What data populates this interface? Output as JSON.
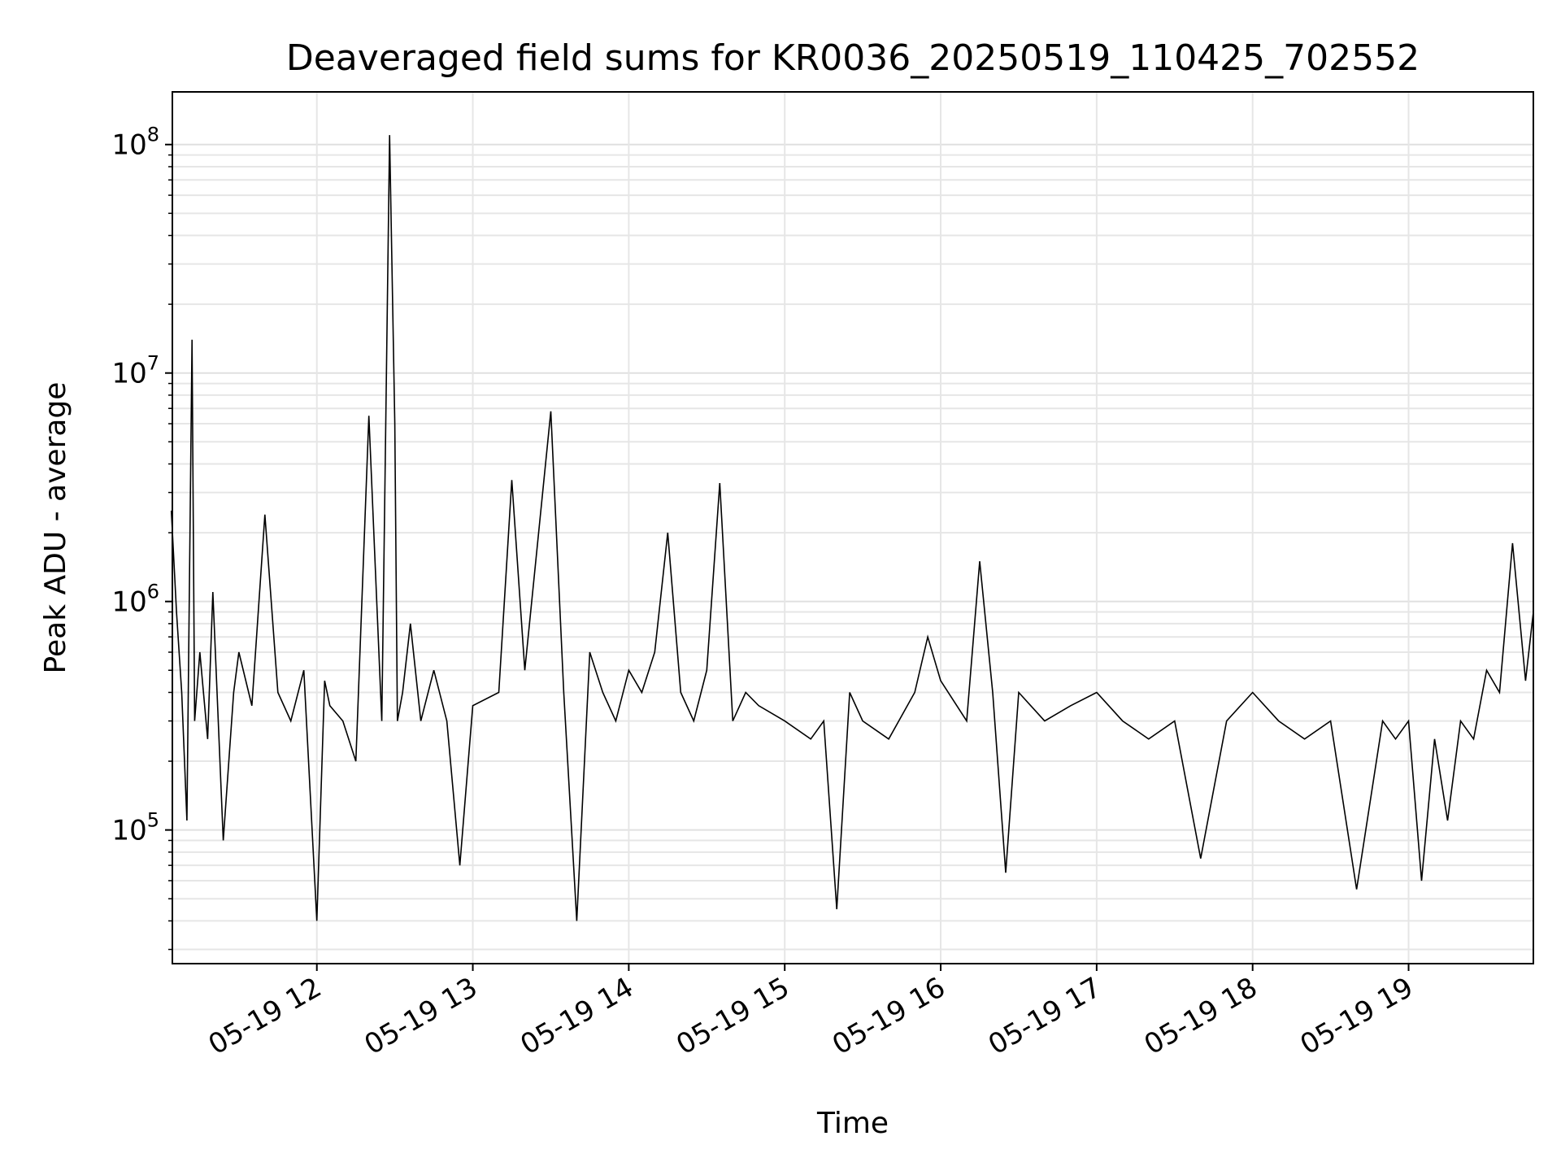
{
  "chart_data": {
    "type": "line",
    "title": "Deaveraged field sums for KR0036_20250519_110425_702552",
    "xlabel": "Time",
    "ylabel": "Peak ADU - average",
    "yscale": "log",
    "ylim": [
      26000,
      170000000
    ],
    "xlim": [
      "2025-05-19 11:04:25",
      "2025-05-19 19:48:00"
    ],
    "grid": true,
    "x_ticks": [
      {
        "x": "2025-05-19 12:00",
        "label": "05-19 12"
      },
      {
        "x": "2025-05-19 13:00",
        "label": "05-19 13"
      },
      {
        "x": "2025-05-19 14:00",
        "label": "05-19 14"
      },
      {
        "x": "2025-05-19 15:00",
        "label": "05-19 15"
      },
      {
        "x": "2025-05-19 16:00",
        "label": "05-19 16"
      },
      {
        "x": "2025-05-19 17:00",
        "label": "05-19 17"
      },
      {
        "x": "2025-05-19 18:00",
        "label": "05-19 18"
      },
      {
        "x": "2025-05-19 19:00",
        "label": "05-19 19"
      }
    ],
    "y_ticks": [
      {
        "value": 100000,
        "base": "10",
        "exp": "5"
      },
      {
        "value": 1000000,
        "base": "10",
        "exp": "6"
      },
      {
        "value": 10000000,
        "base": "10",
        "exp": "7"
      },
      {
        "value": 100000000,
        "base": "10",
        "exp": "8"
      }
    ],
    "series": [
      {
        "color": "#000000",
        "x": [
          "2025-05-19 11:04",
          "2025-05-19 11:06",
          "2025-05-19 11:08",
          "2025-05-19 11:10",
          "2025-05-19 11:12",
          "2025-05-19 11:13",
          "2025-05-19 11:15",
          "2025-05-19 11:18",
          "2025-05-19 11:20",
          "2025-05-19 11:24",
          "2025-05-19 11:28",
          "2025-05-19 11:30",
          "2025-05-19 11:35",
          "2025-05-19 11:40",
          "2025-05-19 11:45",
          "2025-05-19 11:50",
          "2025-05-19 11:55",
          "2025-05-19 12:00",
          "2025-05-19 12:03",
          "2025-05-19 12:05",
          "2025-05-19 12:10",
          "2025-05-19 12:15",
          "2025-05-19 12:20",
          "2025-05-19 12:25",
          "2025-05-19 12:28",
          "2025-05-19 12:30",
          "2025-05-19 12:31",
          "2025-05-19 12:33",
          "2025-05-19 12:36",
          "2025-05-19 12:40",
          "2025-05-19 12:45",
          "2025-05-19 12:50",
          "2025-05-19 12:55",
          "2025-05-19 13:00",
          "2025-05-19 13:10",
          "2025-05-19 13:15",
          "2025-05-19 13:20",
          "2025-05-19 13:30",
          "2025-05-19 13:35",
          "2025-05-19 13:40",
          "2025-05-19 13:45",
          "2025-05-19 13:50",
          "2025-05-19 13:55",
          "2025-05-19 14:00",
          "2025-05-19 14:05",
          "2025-05-19 14:10",
          "2025-05-19 14:15",
          "2025-05-19 14:20",
          "2025-05-19 14:25",
          "2025-05-19 14:30",
          "2025-05-19 14:35",
          "2025-05-19 14:40",
          "2025-05-19 14:45",
          "2025-05-19 14:50",
          "2025-05-19 15:00",
          "2025-05-19 15:10",
          "2025-05-19 15:15",
          "2025-05-19 15:20",
          "2025-05-19 15:25",
          "2025-05-19 15:30",
          "2025-05-19 15:40",
          "2025-05-19 15:50",
          "2025-05-19 15:55",
          "2025-05-19 16:00",
          "2025-05-19 16:10",
          "2025-05-19 16:15",
          "2025-05-19 16:20",
          "2025-05-19 16:25",
          "2025-05-19 16:30",
          "2025-05-19 16:40",
          "2025-05-19 16:50",
          "2025-05-19 17:00",
          "2025-05-19 17:10",
          "2025-05-19 17:20",
          "2025-05-19 17:30",
          "2025-05-19 17:40",
          "2025-05-19 17:50",
          "2025-05-19 18:00",
          "2025-05-19 18:10",
          "2025-05-19 18:20",
          "2025-05-19 18:30",
          "2025-05-19 18:40",
          "2025-05-19 18:50",
          "2025-05-19 18:55",
          "2025-05-19 19:00",
          "2025-05-19 19:05",
          "2025-05-19 19:10",
          "2025-05-19 19:15",
          "2025-05-19 19:20",
          "2025-05-19 19:25",
          "2025-05-19 19:30",
          "2025-05-19 19:35",
          "2025-05-19 19:40",
          "2025-05-19 19:45",
          "2025-05-19 19:48"
        ],
        "y": [
          2500000,
          900000,
          400000,
          110000,
          14000000,
          300000,
          600000,
          250000,
          1100000,
          90000,
          400000,
          600000,
          350000,
          2400000,
          400000,
          300000,
          500000,
          40000,
          450000,
          350000,
          300000,
          200000,
          6500000,
          300000,
          110000000,
          6000000,
          300000,
          400000,
          800000,
          300000,
          500000,
          300000,
          70000,
          350000,
          400000,
          3400000,
          500000,
          6800000,
          400000,
          40000,
          600000,
          400000,
          300000,
          500000,
          400000,
          600000,
          2000000,
          400000,
          300000,
          500000,
          3300000,
          300000,
          400000,
          350000,
          300000,
          250000,
          300000,
          45000,
          400000,
          300000,
          250000,
          400000,
          700000,
          450000,
          300000,
          1500000,
          400000,
          65000,
          400000,
          300000,
          350000,
          400000,
          300000,
          250000,
          300000,
          75000,
          300000,
          400000,
          300000,
          250000,
          300000,
          55000,
          300000,
          250000,
          300000,
          60000,
          250000,
          110000,
          300000,
          250000,
          500000,
          400000,
          1800000,
          450000,
          900000
        ]
      }
    ]
  }
}
